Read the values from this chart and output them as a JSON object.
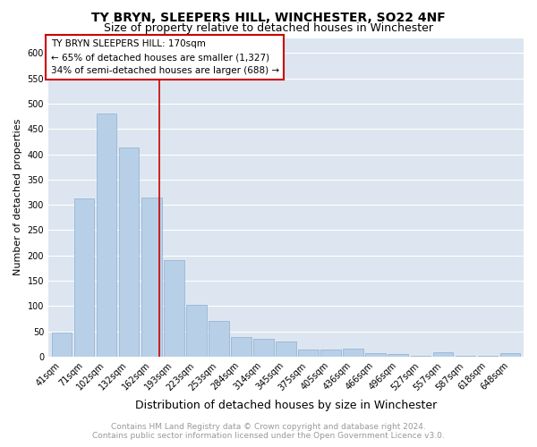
{
  "title": "TY BRYN, SLEEPERS HILL, WINCHESTER, SO22 4NF",
  "subtitle": "Size of property relative to detached houses in Winchester",
  "xlabel": "Distribution of detached houses by size in Winchester",
  "ylabel": "Number of detached properties",
  "categories": [
    "41sqm",
    "71sqm",
    "102sqm",
    "132sqm",
    "162sqm",
    "193sqm",
    "223sqm",
    "253sqm",
    "284sqm",
    "314sqm",
    "345sqm",
    "375sqm",
    "405sqm",
    "436sqm",
    "466sqm",
    "496sqm",
    "527sqm",
    "557sqm",
    "587sqm",
    "618sqm",
    "648sqm"
  ],
  "values": [
    47,
    312,
    480,
    414,
    315,
    190,
    103,
    71,
    38,
    35,
    30,
    14,
    13,
    15,
    7,
    5,
    2,
    8,
    1,
    1,
    6
  ],
  "bar_color": "#b8cfe8",
  "bar_edgecolor": "#8aafd0",
  "background_color": "#dde6f0",
  "grid_color": "#ffffff",
  "ylim": [
    0,
    630
  ],
  "yticks": [
    0,
    50,
    100,
    150,
    200,
    250,
    300,
    350,
    400,
    450,
    500,
    550,
    600
  ],
  "property_line_label": "TY BRYN SLEEPERS HILL: 170sqm",
  "annotation_line1": "← 65% of detached houses are smaller (1,327)",
  "annotation_line2": "34% of semi-detached houses are larger (688) →",
  "annotation_box_color": "#ffffff",
  "annotation_box_edgecolor": "#cc0000",
  "property_line_color": "#cc0000",
  "footer_line1": "Contains HM Land Registry data © Crown copyright and database right 2024.",
  "footer_line2": "Contains public sector information licensed under the Open Government Licence v3.0.",
  "footer_color": "#999999",
  "title_fontsize": 10,
  "subtitle_fontsize": 9,
  "xlabel_fontsize": 9,
  "ylabel_fontsize": 8,
  "tick_fontsize": 7,
  "annotation_fontsize": 7.5,
  "footer_fontsize": 6.5
}
